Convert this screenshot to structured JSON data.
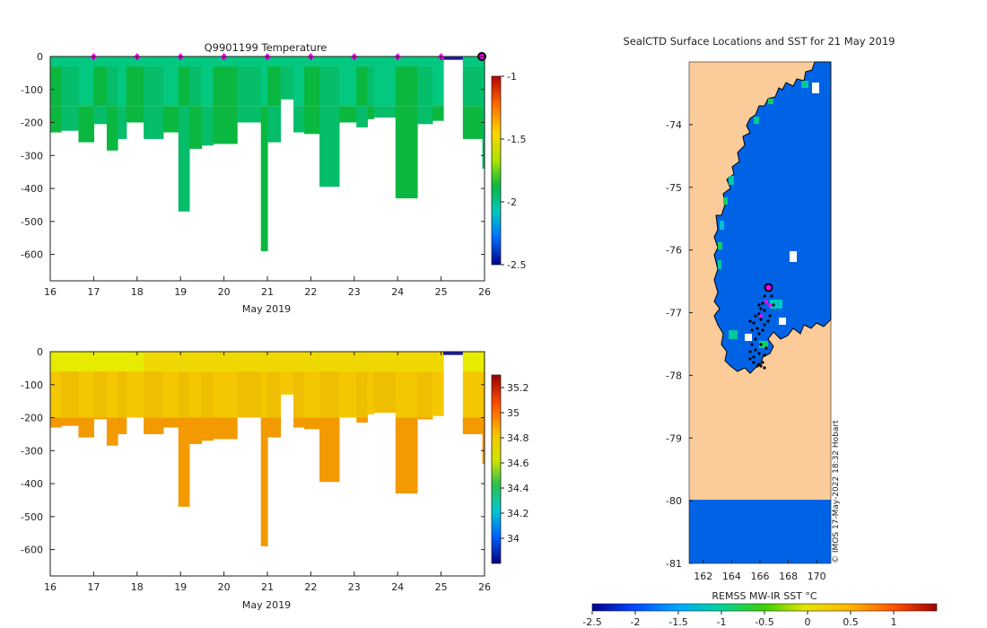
{
  "chart_data": [
    {
      "type": "heatmap",
      "title": "Q9901199  Temperature",
      "xlabel": "May 2019",
      "ylabel": "",
      "xlim": [
        16,
        26
      ],
      "ylim": [
        -680,
        0
      ],
      "x_ticks": [
        "16",
        "17",
        "18",
        "19",
        "20",
        "21",
        "22",
        "23",
        "24",
        "25",
        "26"
      ],
      "y_ticks": [
        "0",
        "-100",
        "-200",
        "-300",
        "-400",
        "-500",
        "-600"
      ],
      "colorbar": {
        "range": [
          -2.5,
          -1
        ],
        "ticks": [
          "-1",
          "-1.5",
          "-2",
          "-2.5"
        ]
      },
      "surface_markers_day": [
        17,
        18,
        19,
        20,
        21,
        22,
        23,
        24,
        25
      ],
      "current_marker_day": 26,
      "profiles": [
        {
          "x0": 16.0,
          "x1": 16.25,
          "depth": 230
        },
        {
          "x0": 16.25,
          "x1": 16.65,
          "depth": 225
        },
        {
          "x0": 16.65,
          "x1": 17.0,
          "depth": 260
        },
        {
          "x0": 17.0,
          "x1": 17.3,
          "depth": 205
        },
        {
          "x0": 17.3,
          "x1": 17.55,
          "depth": 285
        },
        {
          "x0": 17.55,
          "x1": 17.75,
          "depth": 250
        },
        {
          "x0": 17.75,
          "x1": 18.15,
          "depth": 200
        },
        {
          "x0": 18.15,
          "x1": 18.6,
          "depth": 250
        },
        {
          "x0": 18.6,
          "x1": 18.95,
          "depth": 230
        },
        {
          "x0": 18.95,
          "x1": 19.2,
          "depth": 470
        },
        {
          "x0": 19.2,
          "x1": 19.48,
          "depth": 280
        },
        {
          "x0": 19.48,
          "x1": 19.75,
          "depth": 270
        },
        {
          "x0": 19.75,
          "x1": 20.3,
          "depth": 265
        },
        {
          "x0": 20.3,
          "x1": 20.85,
          "depth": 200
        },
        {
          "x0": 20.85,
          "x1": 21.0,
          "depth": 590
        },
        {
          "x0": 21.0,
          "x1": 21.3,
          "depth": 260
        },
        {
          "x0": 21.3,
          "x1": 21.6,
          "depth": 130
        },
        {
          "x0": 21.6,
          "x1": 21.85,
          "depth": 230
        },
        {
          "x0": 21.85,
          "x1": 22.2,
          "depth": 235
        },
        {
          "x0": 22.2,
          "x1": 22.65,
          "depth": 395
        },
        {
          "x0": 22.65,
          "x1": 23.05,
          "depth": 200
        },
        {
          "x0": 23.05,
          "x1": 23.3,
          "depth": 215
        },
        {
          "x0": 23.3,
          "x1": 23.45,
          "depth": 190
        },
        {
          "x0": 23.45,
          "x1": 23.95,
          "depth": 185
        },
        {
          "x0": 23.95,
          "x1": 24.45,
          "depth": 430
        },
        {
          "x0": 24.45,
          "x1": 24.8,
          "depth": 205
        },
        {
          "x0": 24.8,
          "x1": 25.05,
          "depth": 195
        },
        {
          "x0": 25.05,
          "x1": 25.5,
          "depth": 10
        },
        {
          "x0": 25.5,
          "x1": 25.95,
          "depth": 250
        },
        {
          "x0": 25.95,
          "x1": 26.0,
          "depth": 340
        }
      ]
    },
    {
      "type": "heatmap",
      "title": "",
      "xlabel": "May 2019",
      "ylabel": "",
      "xlim": [
        16,
        26
      ],
      "ylim": [
        -680,
        0
      ],
      "x_ticks": [
        "16",
        "17",
        "18",
        "19",
        "20",
        "21",
        "22",
        "23",
        "24",
        "25",
        "26"
      ],
      "y_ticks": [
        "0",
        "-100",
        "-200",
        "-300",
        "-400",
        "-500",
        "-600"
      ],
      "colorbar": {
        "range": [
          33.8,
          35.3
        ],
        "ticks": [
          "35.2",
          "35",
          "34.8",
          "34.6",
          "34.4",
          "34.2",
          "34"
        ]
      }
    },
    {
      "type": "heatmap",
      "title": "SealCTD Surface Locations and SST for 21 May 2019",
      "xlabel": "",
      "ylabel": "",
      "xlim": [
        161.0,
        171.0
      ],
      "ylim": [
        -81.0,
        -73.0
      ],
      "x_ticks": [
        "162",
        "164",
        "166",
        "168",
        "170"
      ],
      "y_ticks": [
        "-74",
        "-75",
        "-76",
        "-77",
        "-78",
        "-79",
        "-80",
        "-81"
      ],
      "credit": "© IMOS 17-May-2022 18:32 Hobart",
      "colorbar": {
        "label": "REMSS MW-IR SST °C",
        "range": [
          -2.5,
          1.5
        ],
        "ticks": [
          "-2.5",
          "-2",
          "-1.5",
          "-1",
          "-0.5",
          "0",
          "0.5",
          "1"
        ]
      },
      "latest_position": {
        "lon": 166.6,
        "lat": -76.6
      }
    }
  ],
  "colors": {
    "land": "#FBCB99",
    "ocean": "#0063E6",
    "temp_main": "#06BD6A",
    "temp_alt": "#03C87F",
    "temp_deep": "#0BB83F",
    "sal_light": "#E7EB00",
    "sal_mid": "#F4C700",
    "sal_deep": "#F39A00",
    "marker": "#FF00FF"
  }
}
